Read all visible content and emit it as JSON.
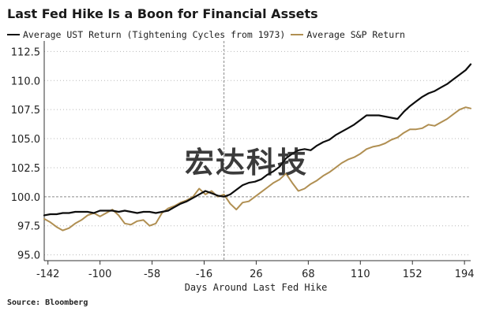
{
  "title": "Last Fed Hike Is a Boon for Financial Assets",
  "source": "Source: Bloomberg",
  "watermark": "宏达科技",
  "colors": {
    "ust": "#0d0d0d",
    "sp": "#b08f52",
    "grid": "#b8b8b8",
    "axis": "#333333"
  },
  "chart_data": {
    "type": "line",
    "title": "Last Fed Hike Is a Boon for Financial Assets",
    "xlabel": "Days Around Last Fed Hike",
    "ylabel": "",
    "xlim": [
      -145,
      199
    ],
    "ylim": [
      94.5,
      113
    ],
    "xticks": [
      -142,
      -100,
      -58,
      -16,
      26,
      68,
      110,
      152,
      194
    ],
    "xtick_labels": [
      "-142",
      "-100",
      "-58",
      "-16",
      "26",
      "68",
      "110",
      "152",
      "194"
    ],
    "yticks": [
      95,
      97.5,
      100,
      102.5,
      105,
      107.5,
      110,
      112.5
    ],
    "ytick_labels": [
      "95.0",
      "97.5",
      "100.0",
      "102.5",
      "105.0",
      "107.5",
      "110.0",
      "112.5"
    ],
    "grid": "horizontal dotted",
    "reference_line_y": 100,
    "reference_line_x": 0,
    "legend": "top-left",
    "series": [
      {
        "name": "Average UST Return (Tightening Cycles from 1973)",
        "x": [
          -145,
          -140,
          -135,
          -130,
          -125,
          -120,
          -115,
          -110,
          -105,
          -100,
          -95,
          -90,
          -85,
          -80,
          -75,
          -70,
          -65,
          -60,
          -55,
          -50,
          -45,
          -40,
          -35,
          -30,
          -25,
          -20,
          -15,
          -10,
          -5,
          0,
          5,
          10,
          15,
          20,
          25,
          30,
          35,
          40,
          45,
          50,
          55,
          60,
          65,
          70,
          75,
          80,
          85,
          90,
          95,
          100,
          105,
          110,
          115,
          120,
          125,
          130,
          135,
          140,
          145,
          150,
          155,
          160,
          165,
          170,
          175,
          180,
          185,
          190,
          195,
          199
        ],
        "values": [
          98.4,
          98.5,
          98.5,
          98.6,
          98.6,
          98.7,
          98.7,
          98.7,
          98.6,
          98.8,
          98.8,
          98.8,
          98.7,
          98.8,
          98.7,
          98.6,
          98.7,
          98.7,
          98.6,
          98.7,
          98.8,
          99.1,
          99.4,
          99.6,
          99.9,
          100.2,
          100.5,
          100.3,
          100.1,
          100.0,
          100.2,
          100.6,
          101.0,
          101.2,
          101.3,
          101.5,
          101.9,
          102.2,
          102.6,
          103.3,
          103.7,
          104.0,
          104.1,
          104.0,
          104.4,
          104.7,
          104.9,
          105.3,
          105.6,
          105.9,
          106.2,
          106.6,
          107.0,
          107.0,
          107.0,
          106.9,
          106.8,
          106.7,
          107.3,
          107.8,
          108.2,
          108.6,
          108.9,
          109.1,
          109.4,
          109.7,
          110.1,
          110.5,
          110.9,
          111.4
        ]
      },
      {
        "name": "Average S&P Return",
        "x": [
          -145,
          -140,
          -135,
          -130,
          -125,
          -120,
          -115,
          -110,
          -105,
          -100,
          -95,
          -90,
          -85,
          -80,
          -75,
          -70,
          -65,
          -60,
          -55,
          -50,
          -45,
          -40,
          -35,
          -30,
          -25,
          -20,
          -15,
          -10,
          -5,
          0,
          5,
          10,
          15,
          20,
          25,
          30,
          35,
          40,
          45,
          50,
          55,
          60,
          65,
          70,
          75,
          80,
          85,
          90,
          95,
          100,
          105,
          110,
          115,
          120,
          125,
          130,
          135,
          140,
          145,
          150,
          155,
          160,
          165,
          170,
          175,
          180,
          185,
          190,
          195,
          199
        ],
        "values": [
          98.1,
          97.8,
          97.4,
          97.1,
          97.3,
          97.7,
          98.0,
          98.4,
          98.6,
          98.3,
          98.6,
          98.9,
          98.4,
          97.7,
          97.6,
          97.9,
          98.0,
          97.5,
          97.7,
          98.6,
          99.0,
          99.2,
          99.5,
          99.7,
          100.0,
          100.7,
          100.2,
          100.5,
          100.0,
          100.2,
          99.4,
          98.9,
          99.5,
          99.6,
          100.0,
          100.4,
          100.8,
          101.2,
          101.5,
          102.0,
          101.2,
          100.5,
          100.7,
          101.1,
          101.4,
          101.8,
          102.1,
          102.5,
          102.9,
          103.2,
          103.4,
          103.7,
          104.1,
          104.3,
          104.4,
          104.6,
          104.9,
          105.1,
          105.5,
          105.8,
          105.8,
          105.9,
          106.2,
          106.1,
          106.4,
          106.7,
          107.1,
          107.5,
          107.7,
          107.6
        ]
      }
    ]
  }
}
